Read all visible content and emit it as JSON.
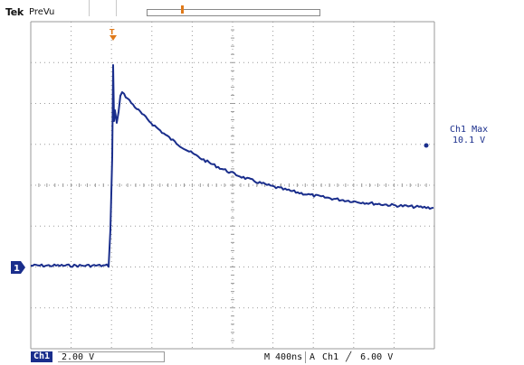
{
  "header": {
    "brand": "Tek",
    "mode": "PreVu",
    "trigger_position_marker": "T"
  },
  "colors": {
    "trace": "#1a2e8c",
    "grid": "#9a9a9a",
    "marker": "#e07a1a",
    "background": "#ffffff"
  },
  "markers": {
    "channel_ground": "1"
  },
  "measurement": {
    "label": "Ch1 Max",
    "value": "10.1 V"
  },
  "footer": {
    "channel": "Ch1",
    "vertical_scale": "2.00 V",
    "timebase": "M 400ns",
    "trigger_mode": "A",
    "trigger_source": "Ch1",
    "trigger_slope": "╱",
    "trigger_level": "6.00 V"
  }
}
